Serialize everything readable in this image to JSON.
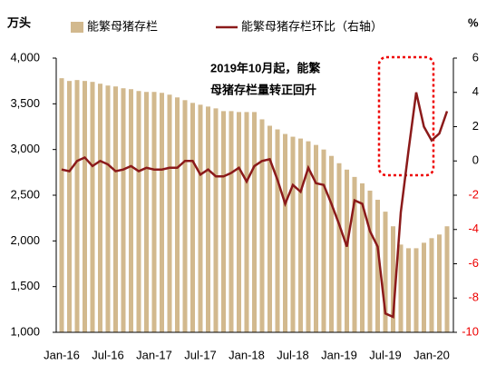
{
  "chart_data": {
    "type": "bar-line",
    "y_unit": "万头",
    "y2_unit": "%",
    "annotation": [
      "2019年10月起，能繁",
      "母猪存栏量转正回升"
    ],
    "categories": [
      "Jan-16",
      null,
      null,
      null,
      null,
      null,
      "Jul-16",
      null,
      null,
      null,
      null,
      null,
      "Jan-17",
      null,
      null,
      null,
      null,
      null,
      "Jul-17",
      null,
      null,
      null,
      null,
      null,
      "Jan-18",
      null,
      null,
      null,
      null,
      null,
      "Jul-18",
      null,
      null,
      null,
      null,
      null,
      "Jan-19",
      null,
      null,
      null,
      null,
      null,
      "Jul-19",
      null,
      null,
      null,
      null,
      null,
      "Jan-20",
      null,
      null
    ],
    "series": [
      {
        "name": "能繁母猪存栏",
        "color": "#d2b98e",
        "values": [
          3780,
          3750,
          3760,
          3750,
          3740,
          3720,
          3700,
          3690,
          3670,
          3660,
          3640,
          3630,
          3630,
          3620,
          3600,
          3570,
          3540,
          3510,
          3490,
          3470,
          3450,
          3420,
          3420,
          3410,
          3410,
          3410,
          3330,
          3260,
          3220,
          3170,
          3140,
          3120,
          3090,
          3050,
          3000,
          2930,
          2850,
          2780,
          2700,
          2630,
          2550,
          2450,
          2320,
          2160,
          1960,
          1920,
          1920,
          1980,
          2030,
          2070,
          2160
        ]
      },
      {
        "name": "能繁母猪存栏环比（右轴）",
        "color": "#8b1a1a",
        "axis": "y2",
        "values": [
          -0.5,
          -0.6,
          0.0,
          0.2,
          -0.3,
          0.0,
          -0.2,
          -0.6,
          -0.5,
          -0.3,
          -0.6,
          -0.4,
          -0.5,
          -0.5,
          -0.4,
          -0.4,
          0.0,
          0.0,
          -0.8,
          -0.5,
          -0.9,
          -0.9,
          -0.7,
          -0.4,
          -1.2,
          -0.3,
          0.0,
          0.1,
          -1.1,
          -2.5,
          -1.4,
          -1.8,
          -0.4,
          -1.3,
          -1.4,
          -2.5,
          -3.7,
          -5.0,
          -2.3,
          -2.5,
          -4.1,
          -5.0,
          -8.9,
          -9.1,
          -3.0,
          0.6,
          4.0,
          2.0,
          1.2,
          1.6,
          2.9
        ]
      }
    ],
    "ylim": [
      1000,
      4000
    ],
    "yticks": [
      {
        "value": 1000,
        "label": "1,000"
      },
      {
        "value": 1500,
        "label": "1,500"
      },
      {
        "value": 2000,
        "label": "2,000"
      },
      {
        "value": 2500,
        "label": "2,500"
      },
      {
        "value": 3000,
        "label": "3,000"
      },
      {
        "value": 3500,
        "label": "3,500"
      },
      {
        "value": 4000,
        "label": "4,000"
      }
    ],
    "y2lim": [
      -10,
      6
    ],
    "y2ticks": [
      -10,
      -8,
      -6,
      -4,
      -2,
      0,
      2,
      4,
      6
    ],
    "legend": "top"
  }
}
